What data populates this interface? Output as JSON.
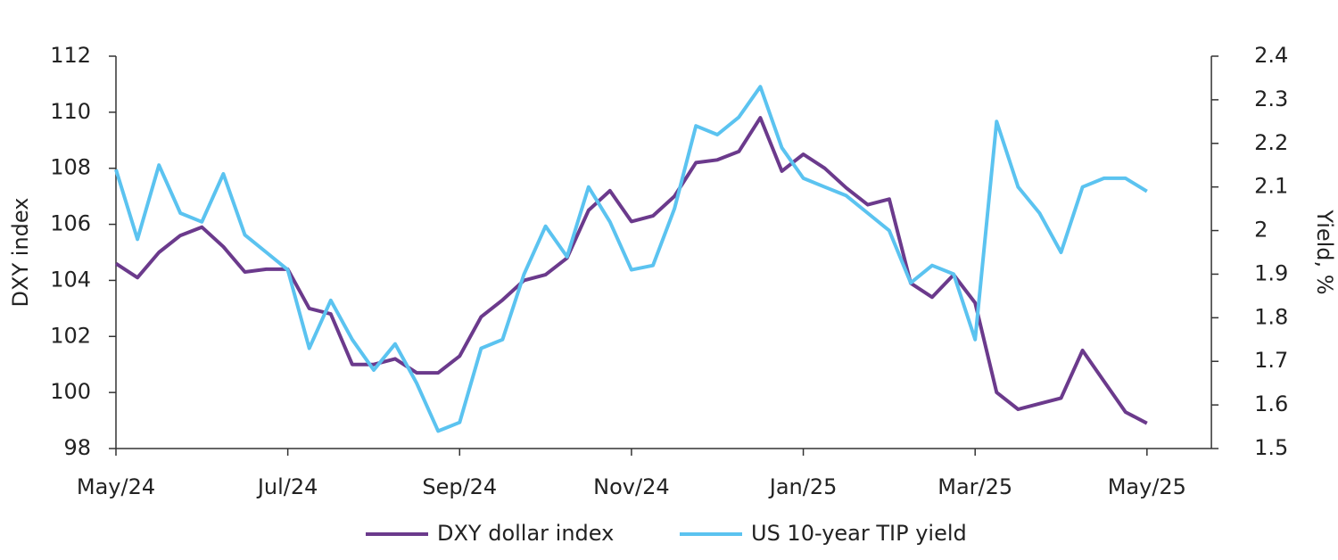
{
  "chart_data": {
    "type": "line",
    "categories": [
      "May/24",
      null,
      null,
      null,
      null,
      null,
      null,
      null,
      "Jul/24",
      null,
      null,
      null,
      null,
      null,
      null,
      null,
      "Sep/24",
      null,
      null,
      null,
      null,
      null,
      null,
      null,
      "Nov/24",
      null,
      null,
      null,
      null,
      null,
      null,
      null,
      "Jan/25",
      null,
      null,
      null,
      null,
      null,
      null,
      null,
      "Mar/25",
      null,
      null,
      null,
      null,
      null,
      null,
      null,
      "May/25",
      null,
      null,
      null
    ],
    "series": [
      {
        "name": "DXY dollar index",
        "color": "#6b3a8c",
        "axis": "y",
        "values": [
          104.6,
          104.1,
          105.0,
          105.6,
          105.9,
          105.2,
          104.3,
          104.4,
          104.4,
          103.0,
          102.8,
          101.0,
          101.0,
          101.2,
          100.7,
          100.7,
          101.3,
          102.7,
          103.3,
          104.0,
          104.2,
          104.8,
          106.5,
          107.2,
          106.1,
          106.3,
          107.0,
          108.2,
          108.3,
          108.6,
          109.8,
          107.9,
          108.5,
          108.0,
          107.3,
          106.7,
          106.9,
          103.9,
          103.4,
          104.2,
          103.2,
          100.0,
          99.4,
          99.6,
          99.8,
          101.5,
          100.4,
          99.3,
          98.9,
          null,
          null,
          null
        ]
      },
      {
        "name": "US 10-year TIP yield",
        "color": "#5bc3f0",
        "axis": "y2",
        "values": [
          2.14,
          1.98,
          2.15,
          2.04,
          2.02,
          2.13,
          1.99,
          1.95,
          1.91,
          1.73,
          1.84,
          1.75,
          1.68,
          1.74,
          1.65,
          1.54,
          1.56,
          1.73,
          1.75,
          1.9,
          2.01,
          1.94,
          2.1,
          2.02,
          1.91,
          1.92,
          2.05,
          2.24,
          2.22,
          2.26,
          2.33,
          2.19,
          2.12,
          2.1,
          2.08,
          2.04,
          2.0,
          1.88,
          1.92,
          1.9,
          1.75,
          2.25,
          2.1,
          2.04,
          1.95,
          2.1,
          2.12,
          2.12,
          2.09,
          null,
          null,
          null
        ]
      }
    ],
    "ylabel": "DXY index",
    "y2label": "Yield, %",
    "ylim": [
      98,
      112
    ],
    "yticks": [
      98,
      100,
      102,
      104,
      106,
      108,
      110,
      112
    ],
    "y2lim": [
      1.5,
      2.4
    ],
    "y2ticks": [
      1.5,
      1.6,
      1.7,
      1.8,
      1.9,
      2,
      2.1,
      2.2,
      2.3,
      2.4
    ],
    "grid": false,
    "legend": "bottom"
  }
}
